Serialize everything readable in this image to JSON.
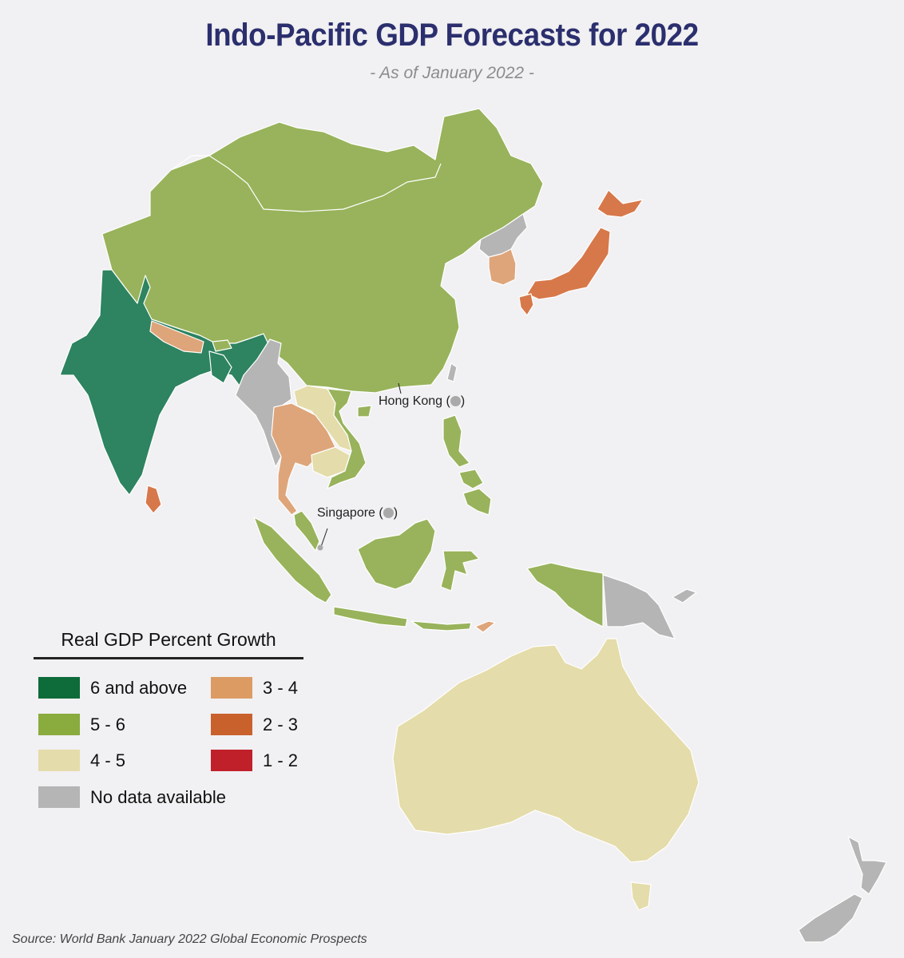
{
  "header": {
    "title": "Indo-Pacific GDP Forecasts for 2022",
    "subtitle": "- As of January 2022 -"
  },
  "colors": {
    "6_and_above": "#2e8360",
    "5_6": "#98b35b",
    "4_5": "#e4dcaa",
    "3_4": "#dea57a",
    "2_3": "#d7784a",
    "1_2": "#c0202a",
    "no_data": "#b5b5b5",
    "legend_6_and_above": "#0e6b3a",
    "legend_5_6": "#8aab3e",
    "legend_3_4": "#dd9b64",
    "legend_2_3": "#c9612c"
  },
  "map": {
    "labels": {
      "hong_kong": "Hong Kong (",
      "hong_kong_close": ")",
      "singapore": "Singapore (",
      "singapore_close": ")"
    }
  },
  "legend": {
    "title": "Real GDP Percent Growth",
    "items": [
      {
        "label": "6 and above",
        "color": "#0e6b3a"
      },
      {
        "label": "5 - 6",
        "color": "#8aab3e"
      },
      {
        "label": "4 - 5",
        "color": "#e4dcaa"
      },
      {
        "label": "No data available",
        "color": "#b5b5b5"
      },
      {
        "label": "3 - 4",
        "color": "#dd9b64"
      },
      {
        "label": "2 - 3",
        "color": "#c9612c"
      },
      {
        "label": "1 - 2",
        "color": "#c0202a"
      }
    ]
  },
  "footer": {
    "source": "Source: World Bank January 2022 Global Economic Prospects"
  }
}
